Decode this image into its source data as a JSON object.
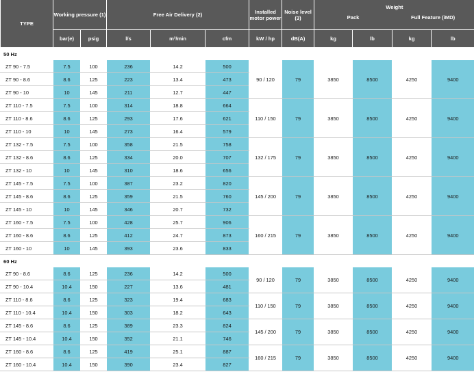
{
  "headers": {
    "type": "TYPE",
    "working_pressure": "Working pressure (1)",
    "free_air_delivery": "Free Air Delivery (2)",
    "installed_motor_power": "Installed motor power",
    "noise_level": "Noise level (3)",
    "weight": "Weight",
    "pack": "Pack",
    "full_feature": "Full Feature (iMD)",
    "units": [
      "bar(e)",
      "psig",
      "l/s",
      "m³/min",
      "cfm",
      "kW / hp",
      "dB(A)",
      "kg",
      "lb",
      "kg",
      "lb"
    ]
  },
  "sections": [
    {
      "label": "50 Hz",
      "groups": [
        {
          "motor": "90 / 120",
          "noise": "79",
          "pack_kg": "3850",
          "pack_lb": "8500",
          "ff_kg": "4250",
          "ff_lb": "9400",
          "rows": [
            {
              "type": "ZT 90 - 7.5",
              "bar": "7.5",
              "psig": "100",
              "ls": "236",
              "m3": "14.2",
              "cfm": "500"
            },
            {
              "type": "ZT 90 - 8.6",
              "bar": "8.6",
              "psig": "125",
              "ls": "223",
              "m3": "13.4",
              "cfm": "473"
            },
            {
              "type": "ZT 90 - 10",
              "bar": "10",
              "psig": "145",
              "ls": "211",
              "m3": "12.7",
              "cfm": "447"
            }
          ]
        },
        {
          "motor": "110 / 150",
          "noise": "79",
          "pack_kg": "3850",
          "pack_lb": "8500",
          "ff_kg": "4250",
          "ff_lb": "9400",
          "rows": [
            {
              "type": "ZT 110 - 7.5",
              "bar": "7.5",
              "psig": "100",
              "ls": "314",
              "m3": "18.8",
              "cfm": "664"
            },
            {
              "type": "ZT 110 - 8.6",
              "bar": "8.6",
              "psig": "125",
              "ls": "293",
              "m3": "17.6",
              "cfm": "621"
            },
            {
              "type": "ZT 110 - 10",
              "bar": "10",
              "psig": "145",
              "ls": "273",
              "m3": "16.4",
              "cfm": "579"
            }
          ]
        },
        {
          "motor": "132 / 175",
          "noise": "79",
          "pack_kg": "3850",
          "pack_lb": "8500",
          "ff_kg": "4250",
          "ff_lb": "9400",
          "rows": [
            {
              "type": "ZT 132 - 7.5",
              "bar": "7.5",
              "psig": "100",
              "ls": "358",
              "m3": "21.5",
              "cfm": "758"
            },
            {
              "type": "ZT 132 - 8.6",
              "bar": "8.6",
              "psig": "125",
              "ls": "334",
              "m3": "20.0",
              "cfm": "707"
            },
            {
              "type": "ZT 132 - 10",
              "bar": "10",
              "psig": "145",
              "ls": "310",
              "m3": "18.6",
              "cfm": "656"
            }
          ]
        },
        {
          "motor": "145 / 200",
          "noise": "79",
          "pack_kg": "3850",
          "pack_lb": "8500",
          "ff_kg": "4250",
          "ff_lb": "9400",
          "rows": [
            {
              "type": "ZT 145 - 7.5",
              "bar": "7.5",
              "psig": "100",
              "ls": "387",
              "m3": "23.2",
              "cfm": "820"
            },
            {
              "type": "ZT 145 - 8.6",
              "bar": "8.6",
              "psig": "125",
              "ls": "359",
              "m3": "21.5",
              "cfm": "760"
            },
            {
              "type": "ZT 145 - 10",
              "bar": "10",
              "psig": "145",
              "ls": "346",
              "m3": "20.7",
              "cfm": "732"
            }
          ]
        },
        {
          "motor": "160 / 215",
          "noise": "79",
          "pack_kg": "3850",
          "pack_lb": "8500",
          "ff_kg": "4250",
          "ff_lb": "9400",
          "rows": [
            {
              "type": "ZT 160 - 7.5",
              "bar": "7.5",
              "psig": "100",
              "ls": "428",
              "m3": "25.7",
              "cfm": "906"
            },
            {
              "type": "ZT 160 - 8.6",
              "bar": "8.6",
              "psig": "125",
              "ls": "412",
              "m3": "24.7",
              "cfm": "873"
            },
            {
              "type": "ZT 160 - 10",
              "bar": "10",
              "psig": "145",
              "ls": "393",
              "m3": "23.6",
              "cfm": "833"
            }
          ]
        }
      ]
    },
    {
      "label": "60 Hz",
      "groups": [
        {
          "motor": "90 / 120",
          "noise": "79",
          "pack_kg": "3850",
          "pack_lb": "8500",
          "ff_kg": "4250",
          "ff_lb": "9400",
          "rows": [
            {
              "type": "ZT 90 - 8.6",
              "bar": "8.6",
              "psig": "125",
              "ls": "236",
              "m3": "14.2",
              "cfm": "500"
            },
            {
              "type": "ZT 90 - 10.4",
              "bar": "10.4",
              "psig": "150",
              "ls": "227",
              "m3": "13.6",
              "cfm": "481"
            }
          ]
        },
        {
          "motor": "110 / 150",
          "noise": "79",
          "pack_kg": "3850",
          "pack_lb": "8500",
          "ff_kg": "4250",
          "ff_lb": "9400",
          "rows": [
            {
              "type": "ZT 110 - 8.6",
              "bar": "8.6",
              "psig": "125",
              "ls": "323",
              "m3": "19.4",
              "cfm": "683"
            },
            {
              "type": "ZT 110 - 10.4",
              "bar": "10.4",
              "psig": "150",
              "ls": "303",
              "m3": "18.2",
              "cfm": "643"
            }
          ]
        },
        {
          "motor": "145 / 200",
          "noise": "79",
          "pack_kg": "3850",
          "pack_lb": "8500",
          "ff_kg": "4250",
          "ff_lb": "9400",
          "rows": [
            {
              "type": "ZT 145 - 8.6",
              "bar": "8.6",
              "psig": "125",
              "ls": "389",
              "m3": "23.3",
              "cfm": "824"
            },
            {
              "type": "ZT 145 - 10.4",
              "bar": "10.4",
              "psig": "150",
              "ls": "352",
              "m3": "21.1",
              "cfm": "746"
            }
          ]
        },
        {
          "motor": "160 / 215",
          "noise": "79",
          "pack_kg": "3850",
          "pack_lb": "8500",
          "ff_kg": "4250",
          "ff_lb": "9400",
          "rows": [
            {
              "type": "ZT 160 - 8.6",
              "bar": "8.6",
              "psig": "125",
              "ls": "419",
              "m3": "25.1",
              "cfm": "887"
            },
            {
              "type": "ZT 160 - 10.4",
              "bar": "10.4",
              "psig": "150",
              "ls": "390",
              "m3": "23.4",
              "cfm": "827"
            }
          ]
        }
      ]
    }
  ]
}
